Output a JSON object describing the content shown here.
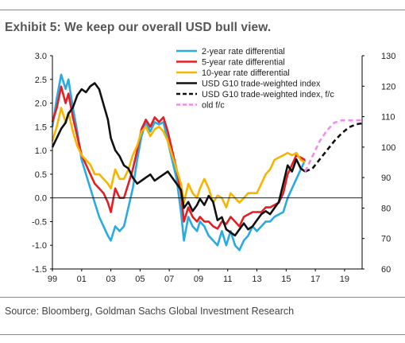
{
  "header": {
    "title": "Exhibit 5: We keep our overall USD bull view."
  },
  "footer": {
    "source": "Source: Bloomberg, Goldman Sachs Global Investment Research"
  },
  "chart_data": {
    "type": "line",
    "title": "Exhibit 5: We keep our overall USD bull view.",
    "x_unit": "year",
    "xlim": [
      1999,
      2020.2
    ],
    "x_tick_labels": [
      "99",
      "01",
      "03",
      "05",
      "07",
      "09",
      "11",
      "13",
      "15",
      "17",
      "19"
    ],
    "x_tick_values": [
      1999,
      2001,
      2003,
      2005,
      2007,
      2009,
      2011,
      2013,
      2015,
      2017,
      2019
    ],
    "y_left": {
      "range": [
        -1.5,
        3.0
      ],
      "ticks": [
        "-1.5",
        "-1.0",
        "-0.5",
        "0.0",
        "0.5",
        "1.0",
        "1.5",
        "2.0",
        "2.5",
        "3.0"
      ]
    },
    "y_right": {
      "range": [
        60,
        130
      ],
      "ticks": [
        "60",
        "70",
        "80",
        "90",
        "100",
        "110",
        "120",
        "130"
      ]
    },
    "grid": false,
    "legend_position": "top-right",
    "series": [
      {
        "name": "2-year rate differential",
        "color": "#29ABE2",
        "axis": "left",
        "style": "solid",
        "x": [
          1999.0,
          1999.3,
          1999.6,
          1999.9,
          2000.1,
          2000.4,
          2000.7,
          2001.0,
          2001.3,
          2001.6,
          2001.9,
          2002.2,
          2002.5,
          2002.8,
          2003.0,
          2003.3,
          2003.6,
          2003.9,
          2004.2,
          2004.5,
          2004.8,
          2005.1,
          2005.4,
          2005.7,
          2006.0,
          2006.3,
          2006.6,
          2006.9,
          2007.2,
          2007.5,
          2007.8,
          2008.0,
          2008.3,
          2008.6,
          2008.9,
          2009.1,
          2009.4,
          2009.7,
          2010.0,
          2010.3,
          2010.6,
          2010.9,
          2011.2,
          2011.5,
          2011.8,
          2012.1,
          2012.4,
          2012.7,
          2013.0,
          2013.3,
          2013.6,
          2013.9,
          2014.2,
          2014.5,
          2014.8,
          2015.1,
          2015.4,
          2015.7,
          2016.0,
          2016.3
        ],
        "y": [
          1.5,
          2.1,
          2.6,
          2.3,
          2.5,
          1.9,
          1.4,
          0.8,
          0.5,
          0.2,
          -0.1,
          -0.4,
          -0.6,
          -0.8,
          -0.9,
          -0.6,
          -0.7,
          -0.6,
          -0.2,
          0.2,
          0.8,
          1.3,
          1.6,
          1.4,
          1.6,
          1.55,
          1.6,
          1.2,
          0.8,
          0.4,
          -0.3,
          -0.9,
          -0.4,
          -0.6,
          -0.7,
          -0.5,
          -0.6,
          -0.8,
          -0.9,
          -1.0,
          -0.7,
          -1.0,
          -0.7,
          -1.0,
          -1.1,
          -0.9,
          -0.8,
          -0.6,
          -0.7,
          -0.6,
          -0.5,
          -0.5,
          -0.4,
          -0.35,
          -0.3,
          0.0,
          0.2,
          0.4,
          0.6,
          0.8
        ]
      },
      {
        "name": "5-year rate differential",
        "color": "#E31E24",
        "axis": "left",
        "style": "solid",
        "x": [
          1999.0,
          1999.3,
          1999.6,
          1999.9,
          2000.1,
          2000.4,
          2000.7,
          2001.0,
          2001.3,
          2001.6,
          2001.9,
          2002.2,
          2002.5,
          2002.8,
          2003.0,
          2003.3,
          2003.6,
          2003.9,
          2004.2,
          2004.5,
          2004.8,
          2005.1,
          2005.4,
          2005.7,
          2006.0,
          2006.3,
          2006.6,
          2006.9,
          2007.2,
          2007.5,
          2007.8,
          2008.0,
          2008.3,
          2008.6,
          2008.9,
          2009.1,
          2009.4,
          2009.7,
          2010.0,
          2010.3,
          2010.6,
          2010.9,
          2011.2,
          2011.5,
          2011.8,
          2012.1,
          2012.4,
          2012.7,
          2013.0,
          2013.3,
          2013.6,
          2013.9,
          2014.2,
          2014.5,
          2014.8,
          2015.1,
          2015.4,
          2015.7,
          2016.0,
          2016.3
        ],
        "y": [
          1.6,
          1.9,
          2.35,
          2.0,
          2.2,
          1.7,
          1.3,
          0.9,
          0.7,
          0.5,
          0.3,
          0.2,
          0.1,
          -0.1,
          -0.3,
          0.2,
          0.0,
          0.0,
          0.3,
          0.6,
          1.0,
          1.45,
          1.65,
          1.5,
          1.7,
          1.6,
          1.7,
          1.4,
          1.0,
          0.6,
          0.1,
          -0.5,
          -0.2,
          -0.4,
          -0.5,
          -0.4,
          -0.5,
          -0.5,
          -0.6,
          -0.65,
          -0.5,
          -0.55,
          -0.4,
          -0.5,
          -0.6,
          -0.4,
          -0.35,
          -0.3,
          -0.3,
          -0.3,
          -0.2,
          -0.2,
          -0.15,
          -0.1,
          0.1,
          0.5,
          0.7,
          0.9,
          0.85,
          0.8
        ]
      },
      {
        "name": "10-year rate differential",
        "color": "#F7B500",
        "axis": "left",
        "style": "solid",
        "x": [
          1999.0,
          1999.3,
          1999.6,
          1999.9,
          2000.1,
          2000.4,
          2000.7,
          2001.0,
          2001.3,
          2001.6,
          2001.9,
          2002.2,
          2002.5,
          2002.8,
          2003.0,
          2003.3,
          2003.6,
          2003.9,
          2004.2,
          2004.5,
          2004.8,
          2005.1,
          2005.4,
          2005.7,
          2006.0,
          2006.3,
          2006.6,
          2006.9,
          2007.2,
          2007.5,
          2007.8,
          2008.0,
          2008.3,
          2008.6,
          2008.9,
          2009.1,
          2009.4,
          2009.7,
          2010.0,
          2010.3,
          2010.6,
          2010.9,
          2011.2,
          2011.5,
          2011.8,
          2012.1,
          2012.4,
          2012.7,
          2013.0,
          2013.3,
          2013.6,
          2013.9,
          2014.2,
          2014.5,
          2014.8,
          2015.1,
          2015.4,
          2015.7,
          2016.0,
          2016.3
        ],
        "y": [
          1.2,
          1.5,
          1.9,
          1.6,
          1.8,
          1.4,
          1.1,
          0.9,
          0.8,
          0.7,
          0.5,
          0.5,
          0.4,
          0.3,
          0.2,
          0.6,
          0.4,
          0.4,
          0.6,
          0.9,
          1.1,
          1.4,
          1.5,
          1.3,
          1.45,
          1.5,
          1.4,
          1.2,
          0.9,
          0.6,
          0.3,
          -0.1,
          0.3,
          0.1,
          0.0,
          0.2,
          0.4,
          0.2,
          -0.1,
          0.05,
          0.0,
          -0.2,
          0.1,
          0.0,
          -0.1,
          0.0,
          0.1,
          0.1,
          0.1,
          0.3,
          0.5,
          0.6,
          0.8,
          0.85,
          0.9,
          0.95,
          0.9,
          0.95,
          0.8,
          0.75
        ]
      },
      {
        "name": "USD G10 trade-weighted index",
        "color": "#111111",
        "axis": "right",
        "style": "solid",
        "x": [
          1999.0,
          1999.3,
          1999.6,
          1999.9,
          2000.1,
          2000.4,
          2000.7,
          2001.0,
          2001.3,
          2001.6,
          2001.9,
          2002.2,
          2002.5,
          2002.8,
          2003.0,
          2003.3,
          2003.6,
          2003.9,
          2004.2,
          2004.5,
          2004.8,
          2005.1,
          2005.4,
          2005.7,
          2006.0,
          2006.3,
          2006.6,
          2006.9,
          2007.2,
          2007.5,
          2007.8,
          2008.0,
          2008.3,
          2008.6,
          2008.9,
          2009.1,
          2009.4,
          2009.7,
          2010.0,
          2010.3,
          2010.6,
          2010.9,
          2011.2,
          2011.5,
          2011.8,
          2012.1,
          2012.4,
          2012.7,
          2013.0,
          2013.3,
          2013.6,
          2013.9,
          2014.2,
          2014.5,
          2014.8,
          2015.1,
          2015.4,
          2015.7,
          2016.0,
          2016.3
        ],
        "y": [
          100,
          103,
          106,
          108,
          111,
          113,
          117,
          119,
          118,
          120,
          121,
          119,
          114,
          109,
          103,
          99,
          97,
          94,
          93,
          90,
          88,
          89,
          90,
          91,
          89,
          90,
          91,
          92,
          90,
          88,
          86,
          80,
          82,
          79,
          81,
          83,
          81,
          84,
          82,
          76,
          77,
          73,
          72,
          71,
          73,
          75,
          73,
          74,
          76,
          78,
          79,
          78,
          80,
          82,
          88,
          94,
          92,
          96,
          93,
          92
        ]
      },
      {
        "name": "USD G10 trade-weighted index, f/c",
        "color": "#111111",
        "axis": "right",
        "style": "dashed",
        "x": [
          2016.3,
          2016.8,
          2017.3,
          2017.8,
          2018.3,
          2018.8,
          2019.3,
          2019.8,
          2020.2
        ],
        "y": [
          92,
          93,
          96,
          99,
          102,
          104.5,
          106.5,
          107.5,
          107.8
        ]
      },
      {
        "name": "old f/c",
        "color": "#F08CF0",
        "axis": "right",
        "style": "dashed",
        "x": [
          2016.3,
          2016.8,
          2017.3,
          2017.8,
          2018.3,
          2018.8,
          2019.3,
          2019.8,
          2020.2
        ],
        "y": [
          92,
          97,
          102,
          105.5,
          108,
          108.8,
          108.8,
          108.8,
          108.8
        ]
      }
    ]
  }
}
